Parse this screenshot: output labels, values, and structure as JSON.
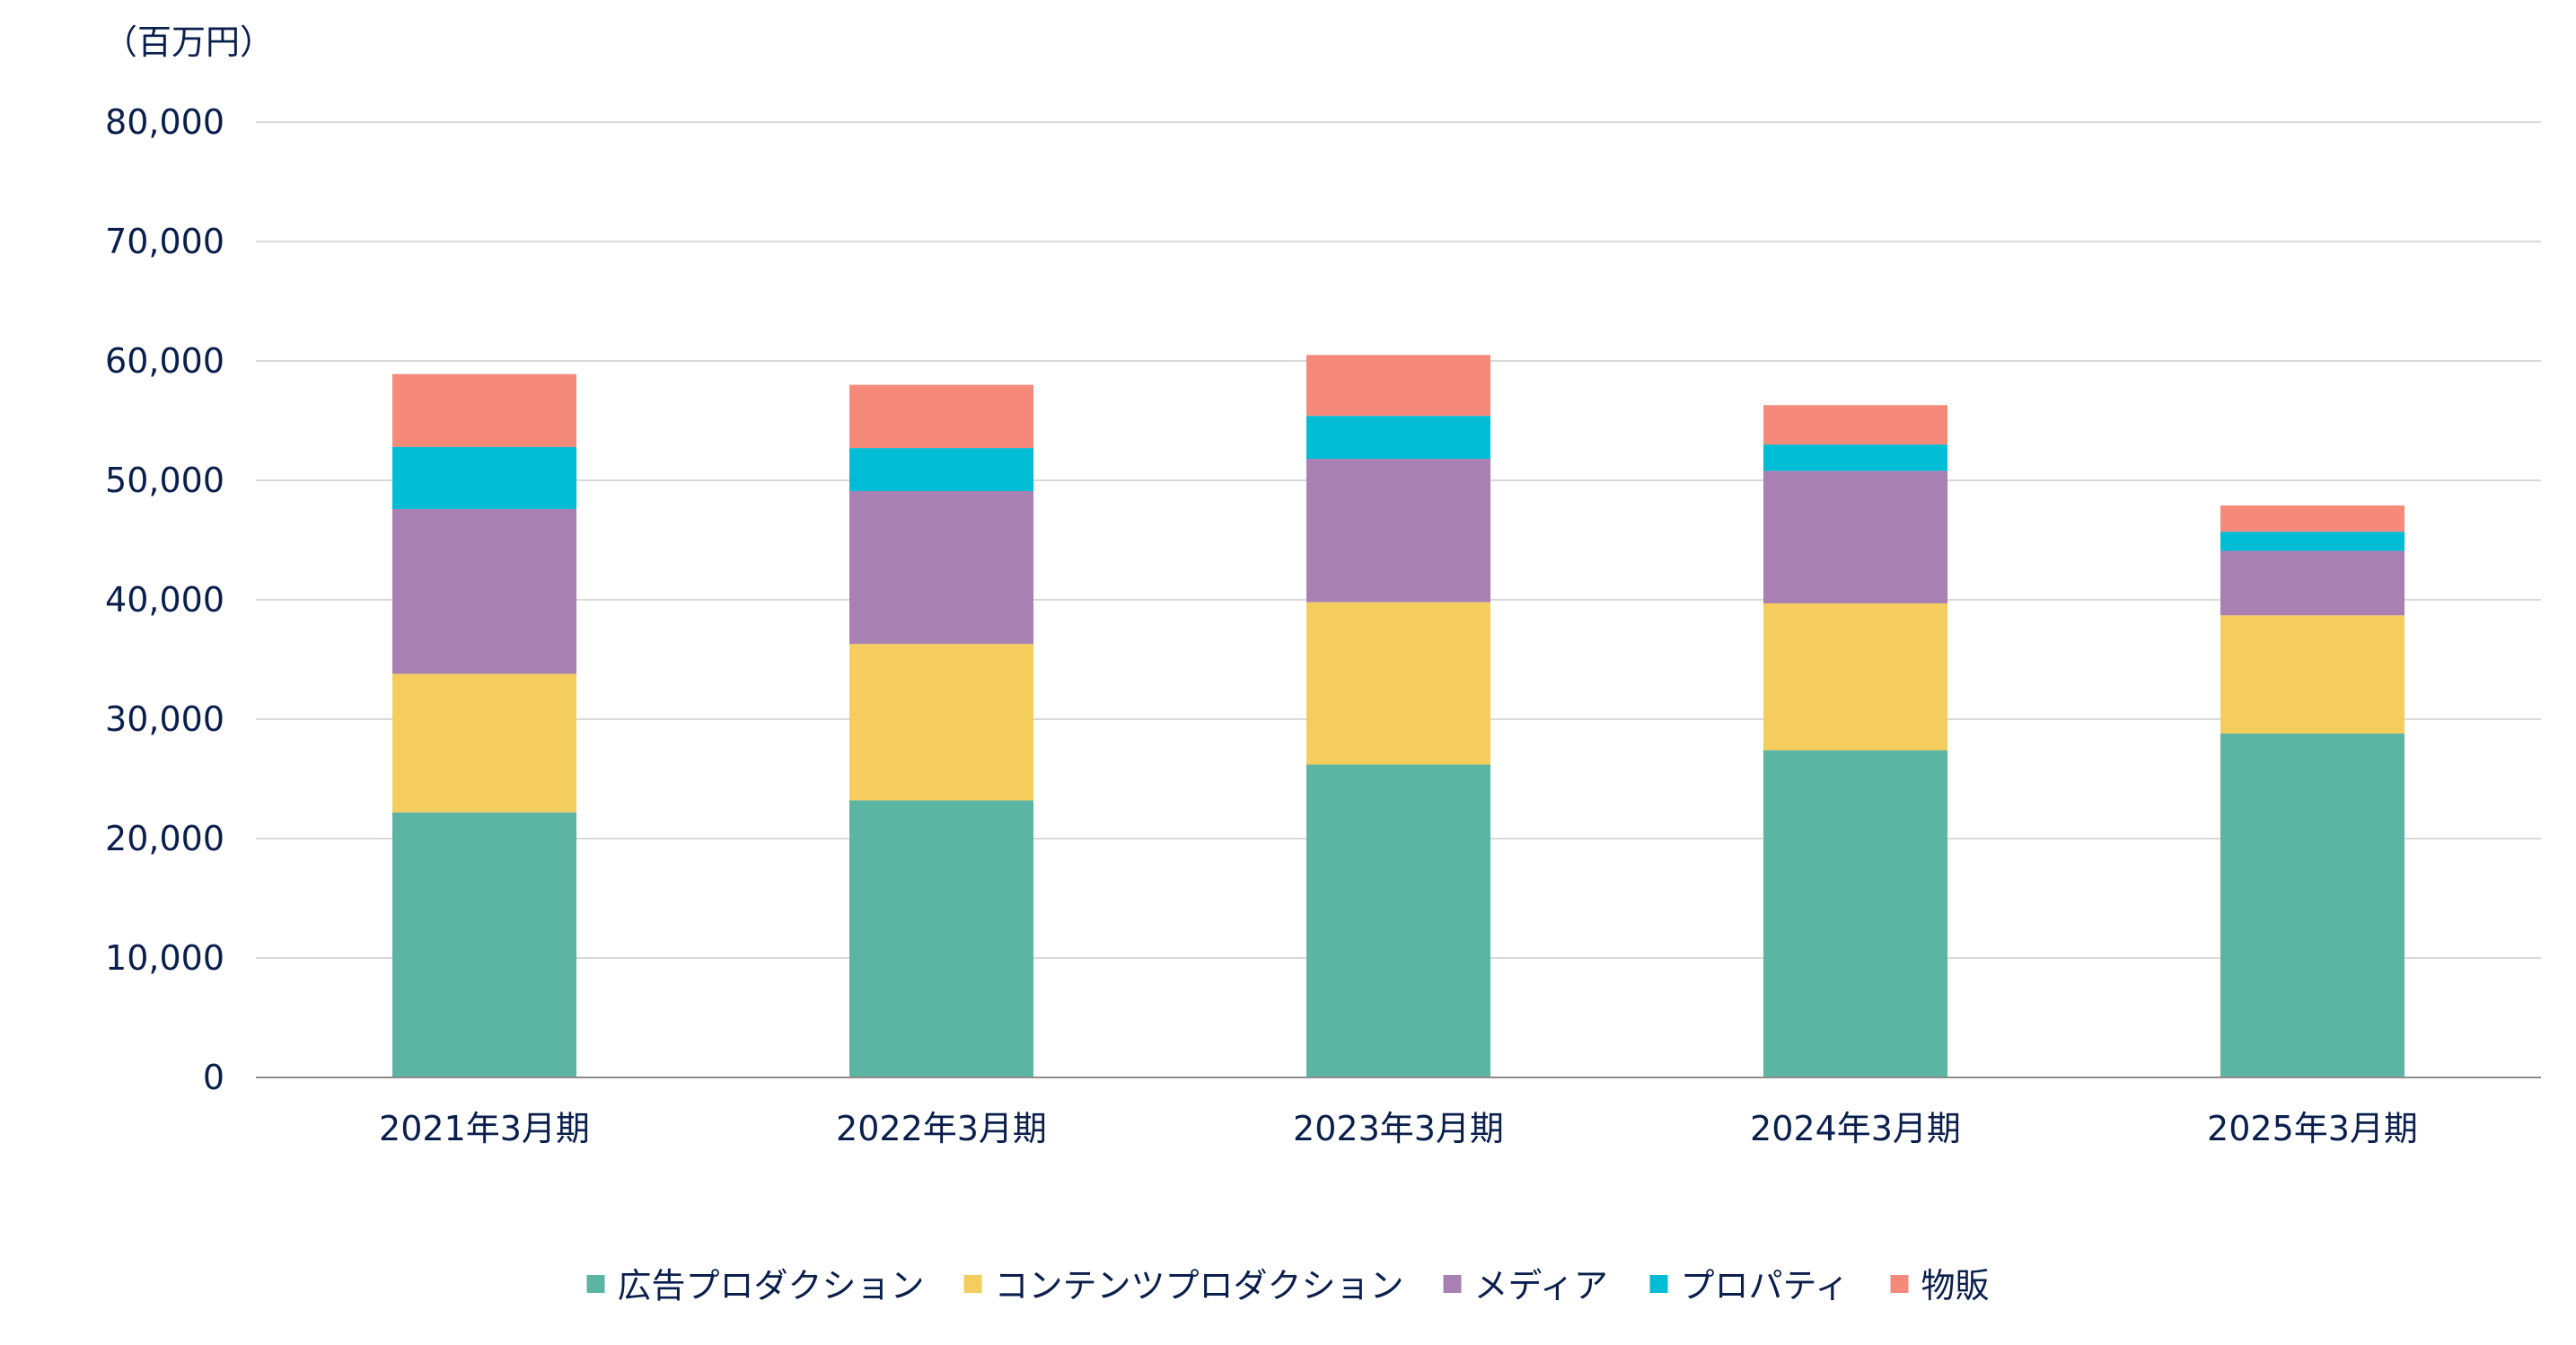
{
  "chart_data": {
    "type": "bar",
    "stacked": true,
    "unit_label": "（百万円）",
    "categories": [
      "2021年3月期",
      "2022年3月期",
      "2023年3月期",
      "2024年3月期",
      "2025年3月期"
    ],
    "ylim": [
      0,
      80000
    ],
    "yticks": [
      0,
      10000,
      20000,
      30000,
      40000,
      50000,
      60000,
      70000,
      80000
    ],
    "ytick_labels": [
      "0",
      "10,000",
      "20,000",
      "30,000",
      "40,000",
      "50,000",
      "60,000",
      "70,000",
      "80,000"
    ],
    "grid": true,
    "legend_position": "bottom",
    "series": [
      {
        "name": "広告プロダクション",
        "color": "#5bb5a2",
        "values": [
          22200,
          23200,
          26200,
          27400,
          28800
        ]
      },
      {
        "name": "コンテンツプロダクション",
        "color": "#f5cd5f",
        "values": [
          11600,
          13100,
          13600,
          12300,
          9900
        ]
      },
      {
        "name": "メディア",
        "color": "#a980b2",
        "values": [
          13800,
          12800,
          12000,
          11100,
          5400
        ]
      },
      {
        "name": "プロパティ",
        "color": "#00bcd4",
        "values": [
          5200,
          3600,
          3600,
          2200,
          1600
        ]
      },
      {
        "name": "物販",
        "color": "#f58a7b",
        "values": [
          6100,
          5300,
          5100,
          3300,
          2200
        ]
      }
    ]
  }
}
